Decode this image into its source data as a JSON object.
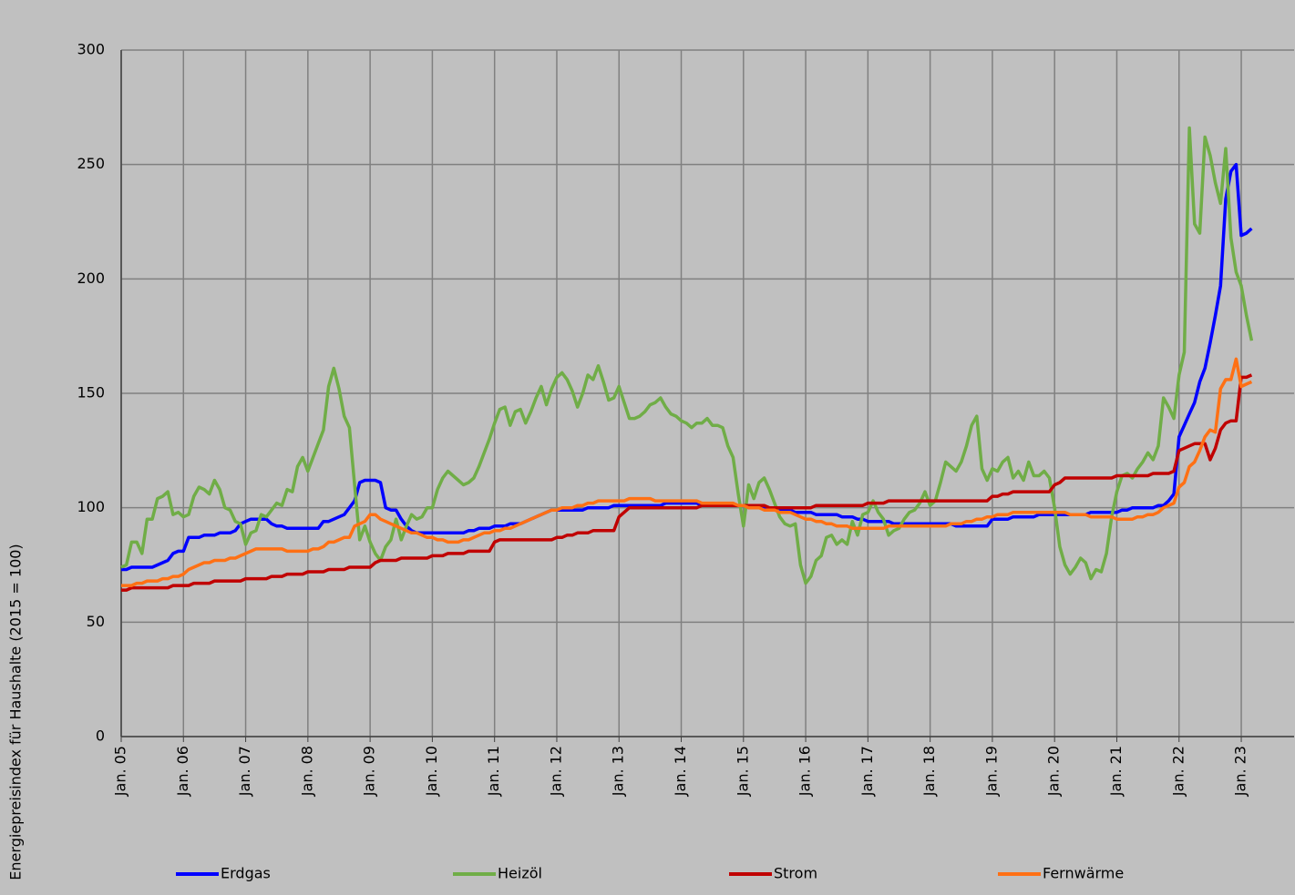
{
  "chart_data": {
    "type": "line",
    "y_label": "Energiepreisindex für Haushalte (2015 = 100)",
    "ylim": [
      0,
      300
    ],
    "yticks": [
      0,
      50,
      100,
      150,
      200,
      250,
      300
    ],
    "grid": true,
    "legend": "bottom",
    "categories": [
      "Jan. 05",
      null,
      null,
      null,
      null,
      null,
      null,
      null,
      null,
      null,
      null,
      null,
      "Jan. 06",
      null,
      null,
      null,
      null,
      null,
      null,
      null,
      null,
      null,
      null,
      null,
      "Jan. 07",
      null,
      null,
      null,
      null,
      null,
      null,
      null,
      null,
      null,
      null,
      null,
      "Jan. 08",
      null,
      null,
      null,
      null,
      null,
      null,
      null,
      null,
      null,
      null,
      null,
      "Jan. 09",
      null,
      null,
      null,
      null,
      null,
      null,
      null,
      null,
      null,
      null,
      null,
      "Jan. 10",
      null,
      null,
      null,
      null,
      null,
      null,
      null,
      null,
      null,
      null,
      null,
      "Jan. 11",
      null,
      null,
      null,
      null,
      null,
      null,
      null,
      null,
      null,
      null,
      null,
      "Jan. 12",
      null,
      null,
      null,
      null,
      null,
      null,
      null,
      null,
      null,
      null,
      null,
      "Jan. 13",
      null,
      null,
      null,
      null,
      null,
      null,
      null,
      null,
      null,
      null,
      null,
      "Jan. 14",
      null,
      null,
      null,
      null,
      null,
      null,
      null,
      null,
      null,
      null,
      null,
      "Jan. 15",
      null,
      null,
      null,
      null,
      null,
      null,
      null,
      null,
      null,
      null,
      null,
      "Jan. 16",
      null,
      null,
      null,
      null,
      null,
      null,
      null,
      null,
      null,
      null,
      null,
      "Jan. 17",
      null,
      null,
      null,
      null,
      null,
      null,
      null,
      null,
      null,
      null,
      null,
      "Jan. 18",
      null,
      null,
      null,
      null,
      null,
      null,
      null,
      null,
      null,
      null,
      null,
      "Jan. 19",
      null,
      null,
      null,
      null,
      null,
      null,
      null,
      null,
      null,
      null,
      null,
      "Jan. 20",
      null,
      null,
      null,
      null,
      null,
      null,
      null,
      null,
      null,
      null,
      null,
      "Jan. 21",
      null,
      null,
      null,
      null,
      null,
      null,
      null,
      null,
      null,
      null,
      null,
      "Jan. 22",
      null,
      null,
      null,
      null,
      null,
      null,
      null,
      null,
      null,
      null,
      null,
      "Jan. 23",
      null,
      null
    ],
    "series": [
      {
        "name": "Erdgas",
        "color": "#0000ff",
        "values": [
          73,
          73,
          74,
          74,
          74,
          74,
          74,
          75,
          76,
          77,
          80,
          81,
          81,
          87,
          87,
          87,
          88,
          88,
          88,
          89,
          89,
          89,
          90,
          93,
          94,
          95,
          95,
          95,
          95,
          93,
          92,
          92,
          91,
          91,
          91,
          91,
          91,
          91,
          91,
          94,
          94,
          95,
          96,
          97,
          100,
          103,
          111,
          112,
          112,
          112,
          111,
          100,
          99,
          99,
          95,
          92,
          90,
          89,
          89,
          89,
          89,
          89,
          89,
          89,
          89,
          89,
          89,
          90,
          90,
          91,
          91,
          91,
          92,
          92,
          92,
          93,
          93,
          93,
          94,
          95,
          96,
          97,
          98,
          99,
          99,
          99,
          99,
          99,
          99,
          99,
          100,
          100,
          100,
          100,
          100,
          101,
          101,
          101,
          101,
          101,
          101,
          101,
          101,
          101,
          101,
          102,
          102,
          102,
          102,
          102,
          102,
          102,
          101,
          101,
          101,
          101,
          101,
          101,
          101,
          101,
          101,
          100,
          100,
          100,
          100,
          99,
          99,
          99,
          99,
          99,
          98,
          98,
          98,
          98,
          97,
          97,
          97,
          97,
          97,
          96,
          96,
          96,
          95,
          95,
          94,
          94,
          94,
          94,
          94,
          93,
          93,
          93,
          93,
          93,
          93,
          93,
          93,
          93,
          93,
          93,
          93,
          92,
          92,
          92,
          92,
          92,
          92,
          92,
          95,
          95,
          95,
          95,
          96,
          96,
          96,
          96,
          96,
          97,
          97,
          97,
          97,
          97,
          97,
          97,
          97,
          97,
          97,
          98,
          98,
          98,
          98,
          98,
          98,
          99,
          99,
          100,
          100,
          100,
          100,
          100,
          101,
          101,
          103,
          106,
          131,
          136,
          141,
          146,
          155,
          161,
          172,
          184,
          197,
          235,
          247,
          250,
          219,
          220,
          222
        ]
      },
      {
        "name": "Heizöl",
        "color": "#70ad47",
        "values": [
          74,
          75,
          85,
          85,
          80,
          95,
          95,
          104,
          105,
          107,
          97,
          98,
          96,
          97,
          105,
          109,
          108,
          106,
          112,
          108,
          100,
          99,
          94,
          93,
          84,
          89,
          90,
          97,
          96,
          99,
          102,
          101,
          108,
          107,
          118,
          122,
          116,
          122,
          128,
          134,
          153,
          161,
          152,
          140,
          135,
          110,
          86,
          92,
          85,
          80,
          77,
          83,
          86,
          95,
          86,
          92,
          97,
          95,
          96,
          100,
          100,
          108,
          113,
          116,
          114,
          112,
          110,
          111,
          113,
          118,
          124,
          130,
          137,
          143,
          144,
          136,
          142,
          143,
          137,
          142,
          148,
          153,
          145,
          152,
          157,
          159,
          156,
          151,
          144,
          150,
          158,
          156,
          162,
          155,
          147,
          148,
          153,
          146,
          139,
          139,
          140,
          142,
          145,
          146,
          148,
          144,
          141,
          140,
          138,
          137,
          135,
          137,
          137,
          139,
          136,
          136,
          135,
          127,
          122,
          106,
          92,
          110,
          104,
          111,
          113,
          108,
          102,
          96,
          93,
          92,
          93,
          75,
          67,
          70,
          77,
          79,
          87,
          88,
          84,
          86,
          84,
          94,
          88,
          97,
          98,
          103,
          98,
          95,
          88,
          90,
          91,
          95,
          98,
          99,
          102,
          107,
          101,
          103,
          111,
          120,
          118,
          116,
          120,
          127,
          136,
          140,
          117,
          112,
          117,
          116,
          120,
          122,
          113,
          116,
          112,
          120,
          114,
          114,
          116,
          113,
          100,
          83,
          75,
          71,
          74,
          78,
          76,
          69,
          73,
          72,
          80,
          96,
          107,
          114,
          115,
          113,
          117,
          120,
          124,
          121,
          127,
          148,
          144,
          139,
          158,
          168,
          266,
          224,
          220,
          262,
          254,
          242,
          233,
          257,
          218,
          203,
          197,
          184,
          173
        ]
      },
      {
        "name": "Strom",
        "color": "#c00000",
        "values": [
          64,
          64,
          65,
          65,
          65,
          65,
          65,
          65,
          65,
          65,
          66,
          66,
          66,
          66,
          67,
          67,
          67,
          67,
          68,
          68,
          68,
          68,
          68,
          68,
          69,
          69,
          69,
          69,
          69,
          70,
          70,
          70,
          71,
          71,
          71,
          71,
          72,
          72,
          72,
          72,
          73,
          73,
          73,
          73,
          74,
          74,
          74,
          74,
          74,
          76,
          77,
          77,
          77,
          77,
          78,
          78,
          78,
          78,
          78,
          78,
          79,
          79,
          79,
          80,
          80,
          80,
          80,
          81,
          81,
          81,
          81,
          81,
          85,
          86,
          86,
          86,
          86,
          86,
          86,
          86,
          86,
          86,
          86,
          86,
          87,
          87,
          88,
          88,
          89,
          89,
          89,
          90,
          90,
          90,
          90,
          90,
          96,
          98,
          100,
          100,
          100,
          100,
          100,
          100,
          100,
          100,
          100,
          100,
          100,
          100,
          100,
          100,
          101,
          101,
          101,
          101,
          101,
          101,
          101,
          101,
          101,
          101,
          101,
          101,
          101,
          100,
          100,
          100,
          100,
          100,
          100,
          100,
          100,
          100,
          101,
          101,
          101,
          101,
          101,
          101,
          101,
          101,
          101,
          101,
          102,
          102,
          102,
          102,
          103,
          103,
          103,
          103,
          103,
          103,
          103,
          103,
          103,
          103,
          103,
          103,
          103,
          103,
          103,
          103,
          103,
          103,
          103,
          103,
          105,
          105,
          106,
          106,
          107,
          107,
          107,
          107,
          107,
          107,
          107,
          107,
          110,
          111,
          113,
          113,
          113,
          113,
          113,
          113,
          113,
          113,
          113,
          113,
          114,
          114,
          114,
          114,
          114,
          114,
          114,
          115,
          115,
          115,
          115,
          116,
          125,
          126,
          127,
          128,
          128,
          128,
          121,
          126,
          134,
          137,
          138,
          138,
          157,
          157,
          158
        ]
      },
      {
        "name": "Fernwärme",
        "color": "#ff7014",
        "values": [
          66,
          66,
          66,
          67,
          67,
          68,
          68,
          68,
          69,
          69,
          70,
          70,
          71,
          73,
          74,
          75,
          76,
          76,
          77,
          77,
          77,
          78,
          78,
          79,
          80,
          81,
          82,
          82,
          82,
          82,
          82,
          82,
          81,
          81,
          81,
          81,
          81,
          82,
          82,
          83,
          85,
          85,
          86,
          87,
          87,
          92,
          93,
          94,
          97,
          97,
          95,
          94,
          93,
          92,
          91,
          90,
          89,
          89,
          88,
          87,
          87,
          86,
          86,
          85,
          85,
          85,
          86,
          86,
          87,
          88,
          89,
          89,
          90,
          90,
          91,
          91,
          92,
          93,
          94,
          95,
          96,
          97,
          98,
          99,
          99,
          100,
          100,
          100,
          101,
          101,
          102,
          102,
          103,
          103,
          103,
          103,
          103,
          103,
          104,
          104,
          104,
          104,
          104,
          103,
          103,
          103,
          103,
          103,
          103,
          103,
          103,
          103,
          102,
          102,
          102,
          102,
          102,
          102,
          102,
          101,
          101,
          100,
          100,
          100,
          99,
          99,
          99,
          98,
          98,
          98,
          97,
          96,
          95,
          95,
          94,
          94,
          93,
          93,
          92,
          92,
          92,
          91,
          91,
          91,
          91,
          91,
          91,
          91,
          92,
          92,
          92,
          92,
          92,
          92,
          92,
          92,
          92,
          92,
          92,
          92,
          93,
          93,
          93,
          94,
          94,
          95,
          95,
          96,
          96,
          97,
          97,
          97,
          98,
          98,
          98,
          98,
          98,
          98,
          98,
          98,
          98,
          98,
          98,
          97,
          97,
          97,
          97,
          96,
          96,
          96,
          96,
          96,
          95,
          95,
          95,
          95,
          96,
          96,
          97,
          97,
          98,
          100,
          101,
          102,
          109,
          111,
          118,
          120,
          125,
          131,
          134,
          133,
          152,
          156,
          156,
          165,
          153,
          154,
          155
        ]
      }
    ]
  }
}
